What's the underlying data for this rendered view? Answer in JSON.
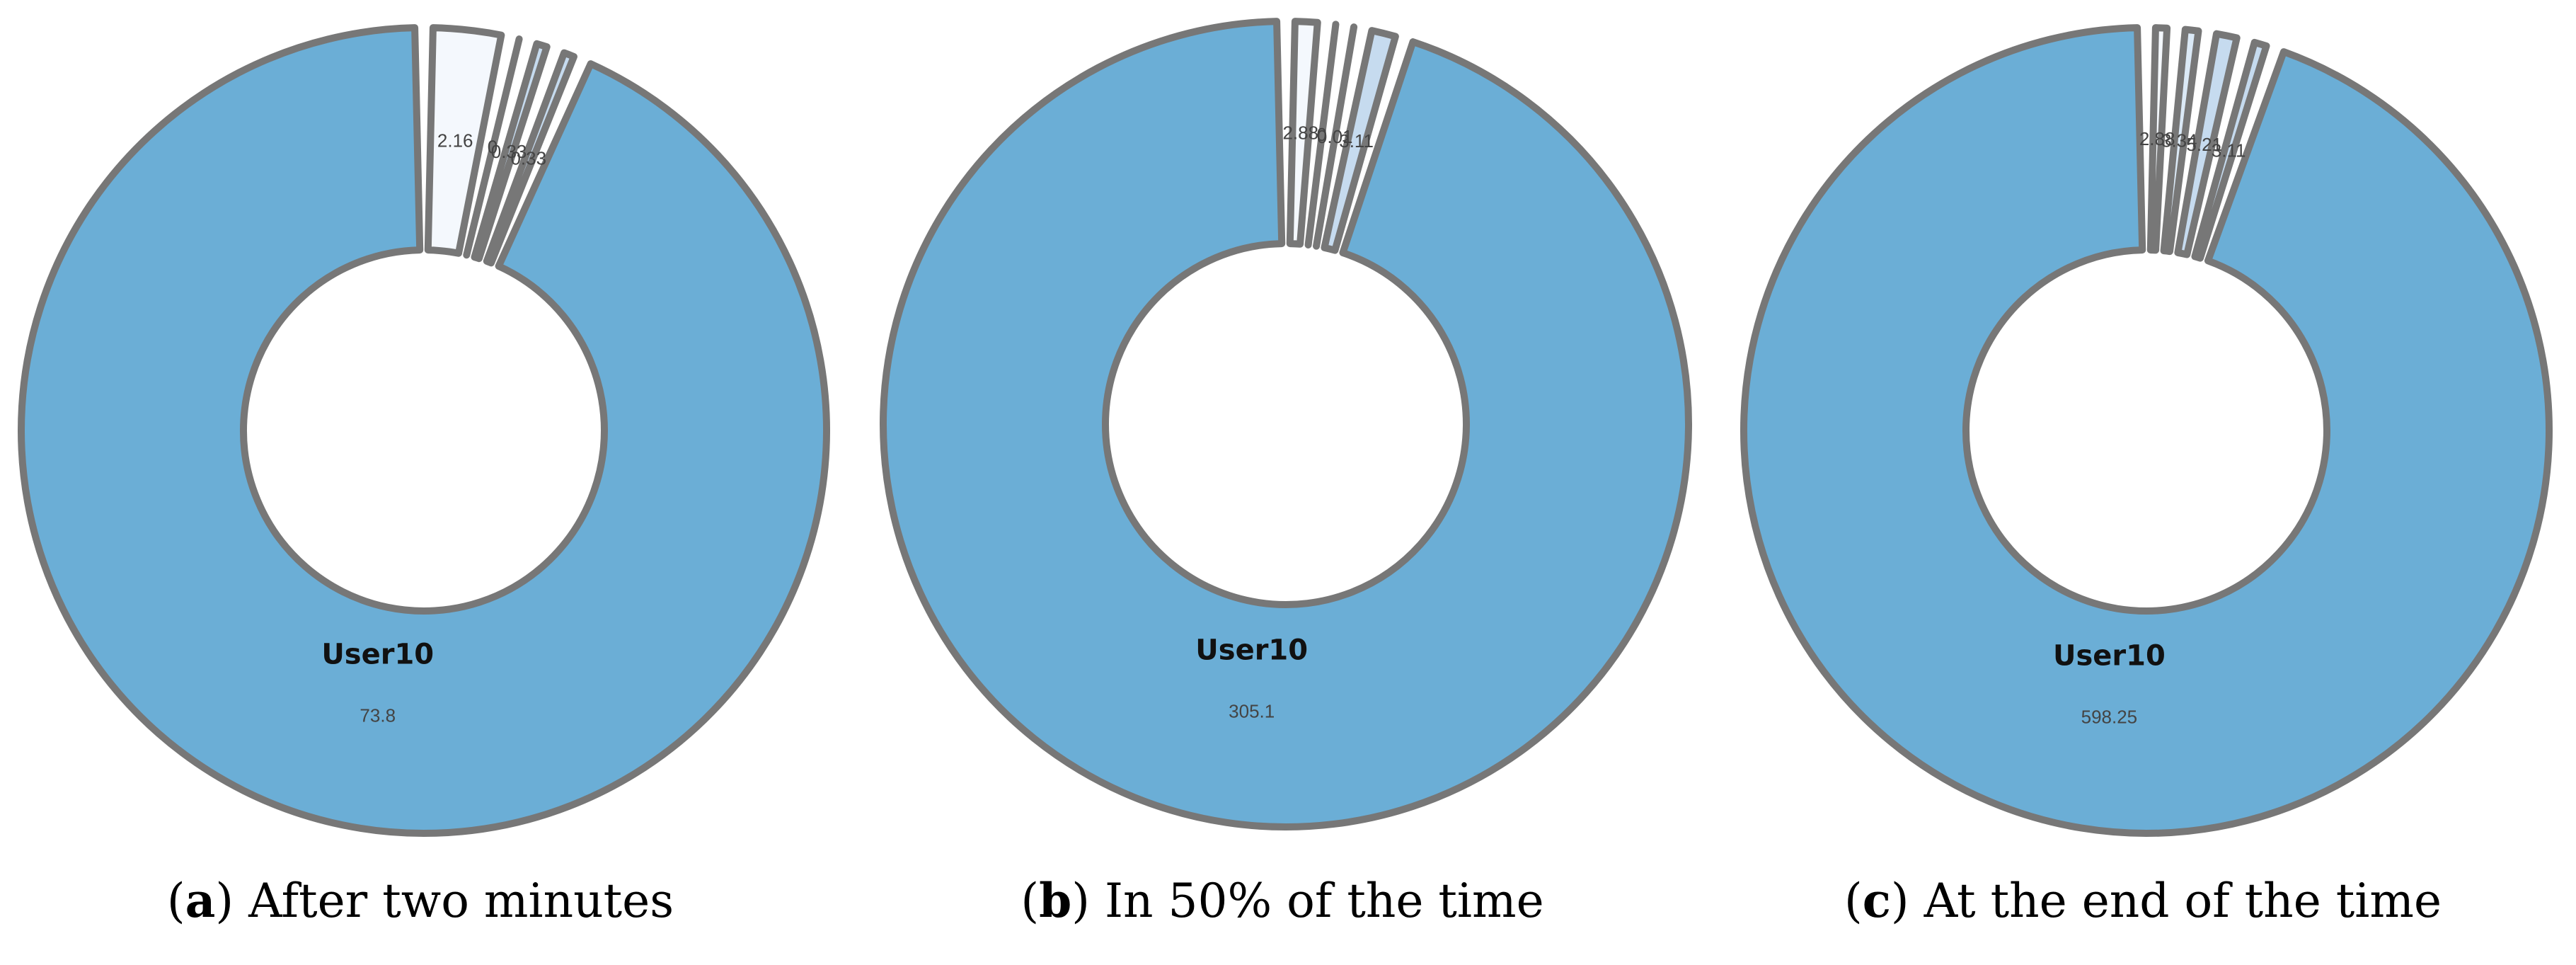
{
  "chart_data": [
    {
      "type": "pie",
      "categories": [
        null,
        null,
        null,
        null,
        "User10"
      ],
      "values": [
        2.16,
        0,
        0.33,
        0.33,
        73.8
      ],
      "colors": [
        "#f4f8fd",
        "#dbe9f6",
        "#c6dbef",
        "#c6dbef",
        "#6baed6"
      ],
      "caption": {
        "open": "(",
        "tag": "a",
        "text": ") After two minutes"
      }
    },
    {
      "type": "pie",
      "categories": [
        null,
        null,
        null,
        null,
        "User10"
      ],
      "values": [
        2.88,
        0,
        0.01,
        3.11,
        305.1
      ],
      "colors": [
        "#f4f8fd",
        "#dbe9f6",
        "#c6dbef",
        "#c6dbef",
        "#6baed6"
      ],
      "caption": {
        "open": "(",
        "tag": "b",
        "text": ") In 50% of the time"
      }
    },
    {
      "type": "pie",
      "categories": [
        null,
        null,
        null,
        null,
        "User10"
      ],
      "values": [
        2.88,
        3.34,
        5.21,
        3.11,
        598.25
      ],
      "colors": [
        "#f4f8fd",
        "#dbe9f6",
        "#c6dbef",
        "#c6dbef",
        "#6baed6"
      ],
      "caption": {
        "open": "(",
        "tag": "c",
        "text": ") At the end of the time"
      }
    }
  ]
}
